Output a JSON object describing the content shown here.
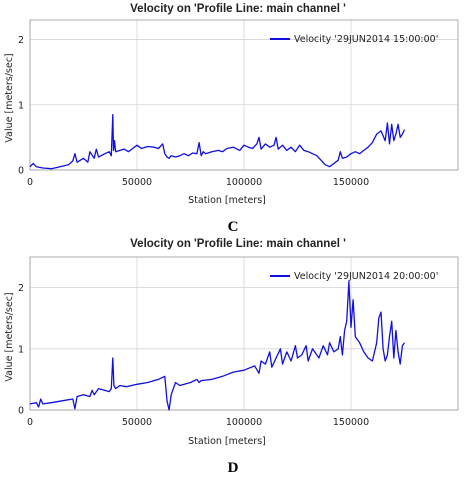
{
  "panels": [
    {
      "caption": "C",
      "legend_label": "Velocity '29JUN2014 15:00:00'",
      "chart_data": {
        "type": "line",
        "title": "Velocity on 'Profile Line: main channel '",
        "xlabel": "Station [meters]",
        "ylabel": "Value [meters/sec]",
        "xlim": [
          0,
          200000
        ],
        "ylim": [
          0,
          2.3
        ],
        "x_ticks": [
          "0",
          "50000",
          "100000",
          "150000"
        ],
        "y_ticks": [
          "0",
          "1",
          "2"
        ],
        "grid": true,
        "legend_position": "top-right",
        "color": "#1010e0",
        "series": [
          {
            "name": "Velocity '29JUN2014 15:00:00'",
            "x": [
              0,
              1500,
              3000,
              6000,
              10000,
              14000,
              18000,
              20000,
              21000,
              22000,
              25000,
              27000,
              28000,
              30000,
              31000,
              32000,
              35000,
              37000,
              38000,
              38700,
              39000,
              39500,
              40000,
              42000,
              44000,
              46000,
              48000,
              50000,
              52000,
              55000,
              58000,
              60000,
              62000,
              63000,
              64000,
              65000,
              66000,
              68000,
              70000,
              72000,
              74000,
              76000,
              78000,
              79000,
              80000,
              81000,
              82000,
              85000,
              88000,
              90000,
              92000,
              95000,
              98000,
              100000,
              102000,
              104000,
              106000,
              107000,
              108000,
              110000,
              112000,
              114000,
              115000,
              116000,
              118000,
              120000,
              122000,
              124000,
              126000,
              128000,
              130000,
              132000,
              134000,
              136000,
              138000,
              140000,
              142000,
              144000,
              145000,
              146000,
              148000,
              150000,
              152000,
              154000,
              156000,
              158000,
              160000,
              162000,
              164000,
              166000,
              167000,
              168000,
              169000,
              170000,
              171000,
              172000,
              173000,
              174000,
              175000
            ],
            "values": [
              0.05,
              0.1,
              0.05,
              0.03,
              0.02,
              0.05,
              0.08,
              0.14,
              0.25,
              0.12,
              0.18,
              0.12,
              0.28,
              0.18,
              0.32,
              0.2,
              0.25,
              0.28,
              0.22,
              0.85,
              0.3,
              0.45,
              0.28,
              0.3,
              0.32,
              0.28,
              0.33,
              0.38,
              0.33,
              0.36,
              0.35,
              0.33,
              0.4,
              0.25,
              0.2,
              0.18,
              0.22,
              0.2,
              0.22,
              0.25,
              0.22,
              0.26,
              0.25,
              0.42,
              0.22,
              0.28,
              0.25,
              0.28,
              0.3,
              0.28,
              0.33,
              0.35,
              0.3,
              0.38,
              0.35,
              0.33,
              0.4,
              0.5,
              0.32,
              0.4,
              0.35,
              0.38,
              0.5,
              0.32,
              0.38,
              0.3,
              0.35,
              0.28,
              0.38,
              0.3,
              0.28,
              0.25,
              0.22,
              0.15,
              0.08,
              0.05,
              0.1,
              0.15,
              0.28,
              0.18,
              0.2,
              0.25,
              0.28,
              0.25,
              0.3,
              0.35,
              0.42,
              0.55,
              0.6,
              0.45,
              0.72,
              0.4,
              0.7,
              0.45,
              0.55,
              0.7,
              0.5,
              0.55,
              0.62
            ]
          }
        ]
      }
    },
    {
      "caption": "D",
      "legend_label": "Velocity '29JUN2014 20:00:00'",
      "chart_data": {
        "type": "line",
        "title": "Velocity on 'Profile Line: main channel '",
        "xlabel": "Station [meters]",
        "ylabel": "Value [meters/sec]",
        "xlim": [
          0,
          200000
        ],
        "ylim": [
          0,
          2.5
        ],
        "x_ticks": [
          "0",
          "50000",
          "100000",
          "150000"
        ],
        "y_ticks": [
          "0",
          "1",
          "2"
        ],
        "grid": true,
        "legend_position": "top-right",
        "color": "#1010e0",
        "series": [
          {
            "name": "Velocity '29JUN2014 20:00:00'",
            "x": [
              0,
              3000,
              4000,
              5000,
              6000,
              10000,
              15000,
              20000,
              21000,
              22000,
              25000,
              28000,
              29000,
              30000,
              32000,
              35000,
              37000,
              38000,
              38700,
              39200,
              40000,
              42000,
              45000,
              50000,
              55000,
              60000,
              63000,
              64000,
              65000,
              66000,
              68000,
              70000,
              75000,
              78000,
              79000,
              80000,
              85000,
              90000,
              95000,
              100000,
              105000,
              107000,
              108000,
              110000,
              112000,
              113000,
              115000,
              117000,
              118000,
              120000,
              122000,
              124000,
              125000,
              127000,
              129000,
              130000,
              132000,
              135000,
              137000,
              139000,
              140000,
              142000,
              144000,
              145000,
              146000,
              147000,
              148000,
              149000,
              150000,
              151000,
              152000,
              154000,
              156000,
              158000,
              160000,
              162000,
              163000,
              164000,
              165000,
              166000,
              167000,
              168000,
              169000,
              170000,
              171000,
              172000,
              173000,
              174000,
              175000
            ],
            "values": [
              0.1,
              0.12,
              0.05,
              0.18,
              0.1,
              0.12,
              0.15,
              0.18,
              0.02,
              0.22,
              0.25,
              0.22,
              0.32,
              0.25,
              0.35,
              0.32,
              0.3,
              0.35,
              0.85,
              0.4,
              0.35,
              0.4,
              0.38,
              0.42,
              0.45,
              0.5,
              0.55,
              0.15,
              0.0,
              0.25,
              0.45,
              0.4,
              0.45,
              0.5,
              0.45,
              0.48,
              0.5,
              0.55,
              0.62,
              0.65,
              0.72,
              0.6,
              0.8,
              0.75,
              0.95,
              0.7,
              0.85,
              1.0,
              0.75,
              0.95,
              0.8,
              1.05,
              0.85,
              0.9,
              1.05,
              0.8,
              1.0,
              0.85,
              1.05,
              0.9,
              1.1,
              0.95,
              1.0,
              1.2,
              0.9,
              1.3,
              1.45,
              2.1,
              1.35,
              1.8,
              1.2,
              1.1,
              0.95,
              0.85,
              0.8,
              1.1,
              1.5,
              1.6,
              1.0,
              0.8,
              0.9,
              1.2,
              1.45,
              0.85,
              1.3,
              0.95,
              0.75,
              1.05,
              1.1
            ]
          }
        ]
      }
    }
  ]
}
